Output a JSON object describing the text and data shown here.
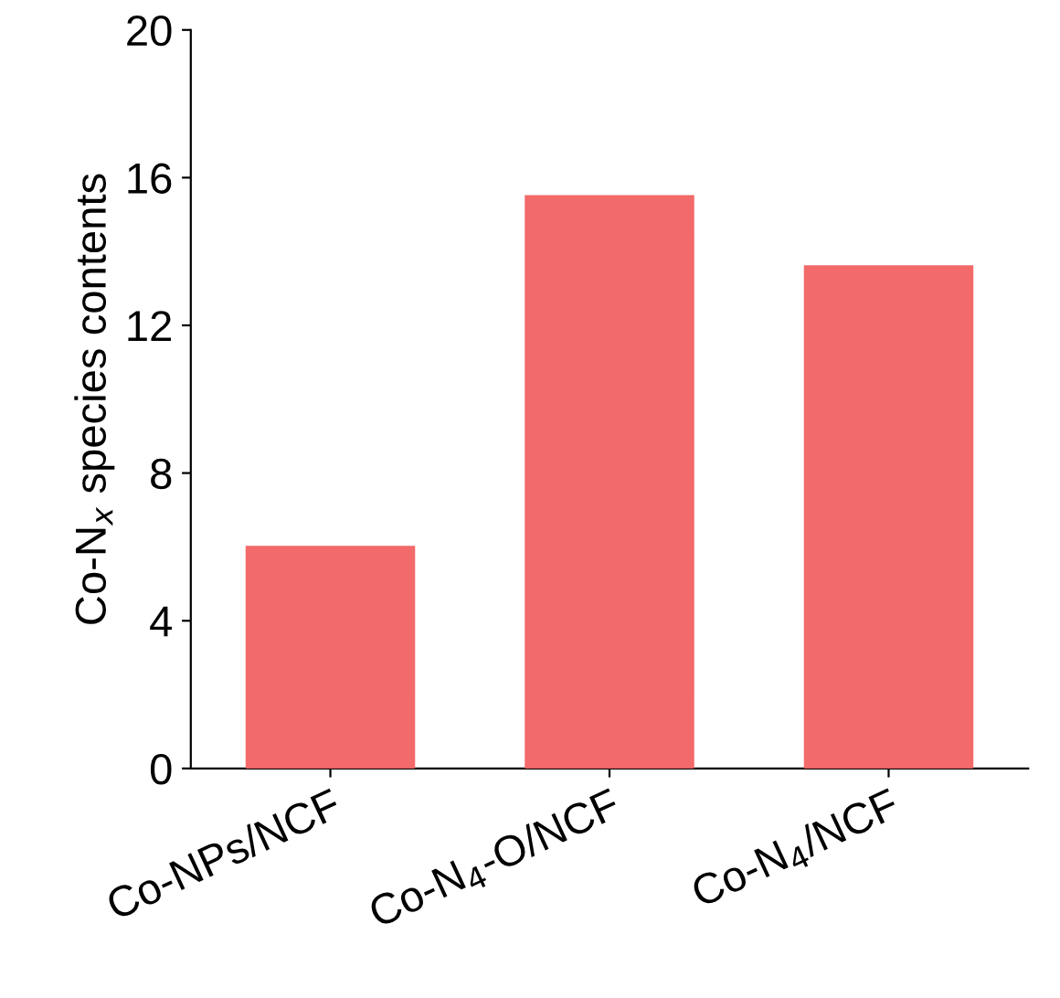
{
  "chart_data": {
    "type": "bar",
    "ylabel": "Co-N$_{x}$ species contents",
    "categories": [
      "Co-NPs/NCF",
      "Co-N$_{4}$-O/NCF",
      "Co-N$_{4}$/NCF"
    ],
    "values": [
      6.0,
      15.5,
      13.6
    ],
    "color": "#f26a6a",
    "ylim": [
      0,
      20
    ],
    "yticks": [
      0,
      4,
      8,
      12,
      16,
      20
    ],
    "grid": false
  }
}
